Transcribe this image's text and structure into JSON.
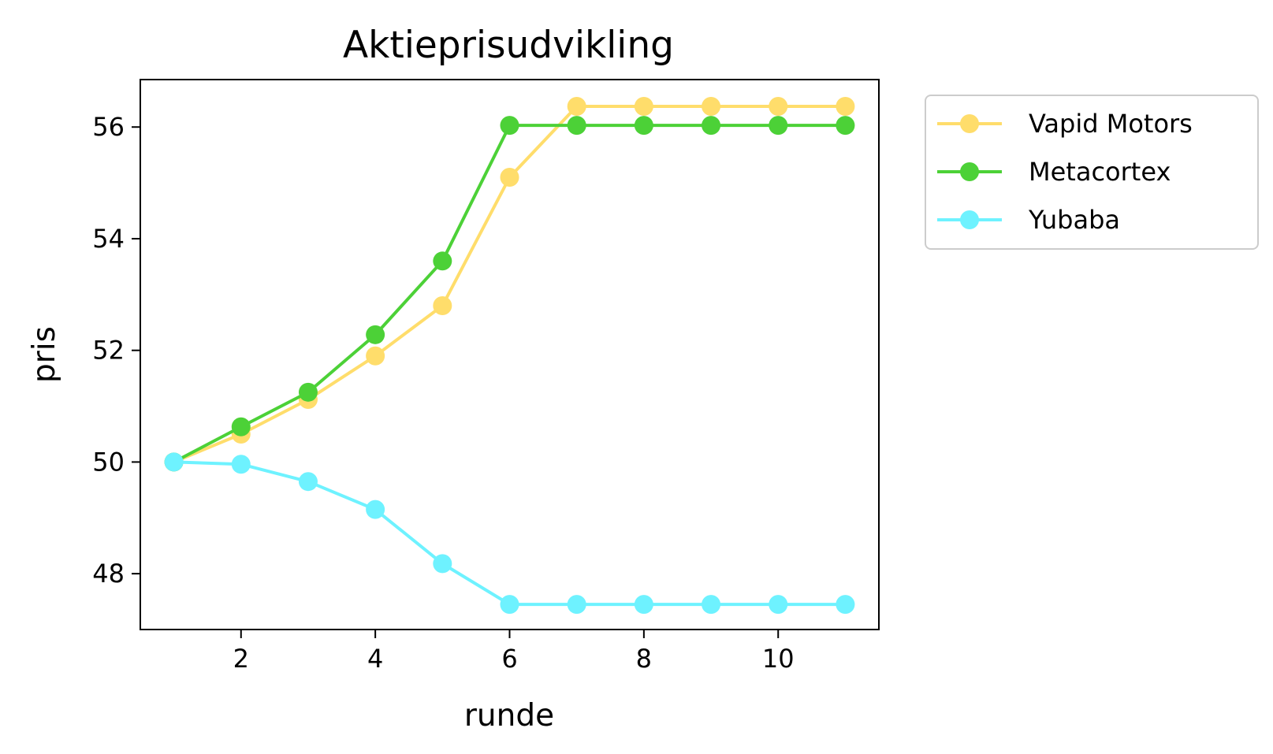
{
  "chart_data": {
    "type": "line",
    "title": "Aktieprisudvikling",
    "xlabel": "runde",
    "ylabel": "pris",
    "x": [
      1,
      2,
      3,
      4,
      5,
      6,
      7,
      8,
      9,
      10,
      11
    ],
    "xlim": [
      0.5,
      11.5
    ],
    "ylim": [
      47.0,
      56.85
    ],
    "xticks": [
      2,
      4,
      6,
      8,
      10
    ],
    "yticks": [
      48,
      50,
      52,
      54,
      56
    ],
    "grid": false,
    "legend_position": "outside-top-right",
    "series": [
      {
        "name": "Vapid Motors",
        "color": "#FFDD6B",
        "values": [
          50.0,
          50.5,
          51.12,
          51.9,
          52.8,
          55.1,
          56.37,
          56.37,
          56.37,
          56.37,
          56.37
        ]
      },
      {
        "name": "Metacortex",
        "color": "#4CD137",
        "values": [
          50.0,
          50.63,
          51.25,
          52.28,
          53.6,
          56.03,
          56.03,
          56.03,
          56.03,
          56.03,
          56.03
        ]
      },
      {
        "name": "Yubaba",
        "color": "#6EF2FF",
        "values": [
          50.0,
          49.96,
          49.65,
          49.15,
          48.18,
          47.45,
          47.45,
          47.45,
          47.45,
          47.45,
          47.45
        ]
      }
    ]
  }
}
